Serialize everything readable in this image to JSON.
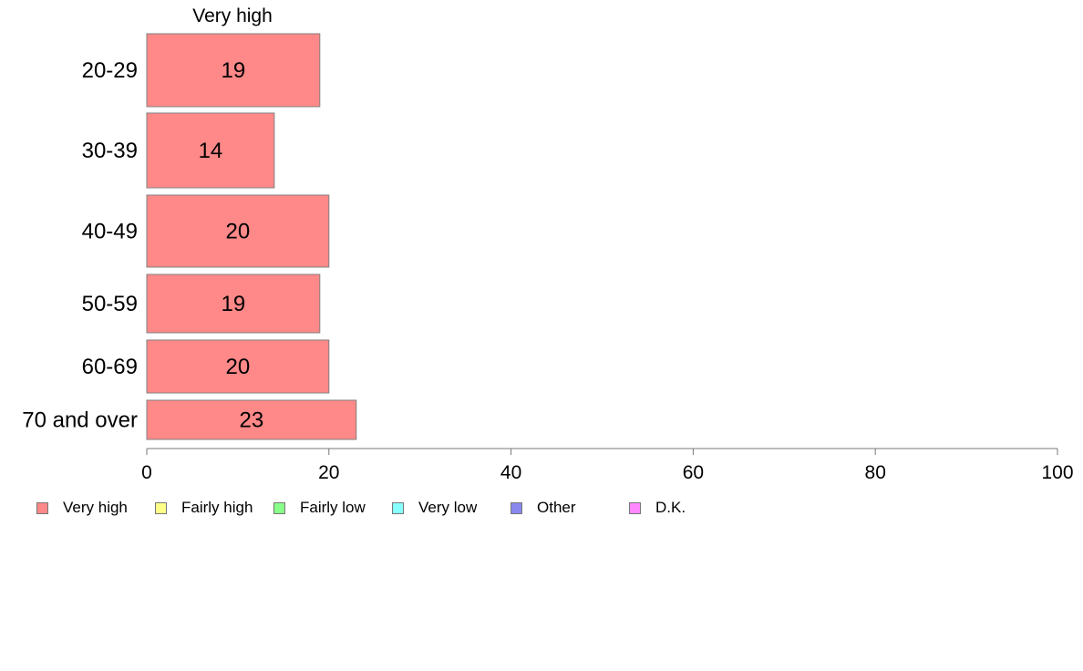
{
  "chart_data": {
    "type": "bar",
    "orientation": "horizontal",
    "title": "Very high",
    "categories": [
      "20-29",
      "30-39",
      "40-49",
      "50-59",
      "60-69",
      "70 and over"
    ],
    "series": [
      {
        "name": "Very high",
        "values": [
          19,
          14,
          20,
          19,
          20,
          23
        ],
        "color": "#ff8888"
      }
    ],
    "xlim": [
      0,
      100
    ],
    "xticks": [
      0,
      20,
      40,
      60,
      80,
      100
    ],
    "grid": false,
    "legend": {
      "placement": "bottom",
      "items": [
        {
          "label": "Very high",
          "color": "#ff8888"
        },
        {
          "label": "Fairly high",
          "color": "#ffff88"
        },
        {
          "label": "Fairly low",
          "color": "#88ff88"
        },
        {
          "label": "Very low",
          "color": "#88ffff"
        },
        {
          "label": "Other",
          "color": "#8888ee"
        },
        {
          "label": "D.K.",
          "color": "#ff88ff"
        }
      ]
    }
  }
}
